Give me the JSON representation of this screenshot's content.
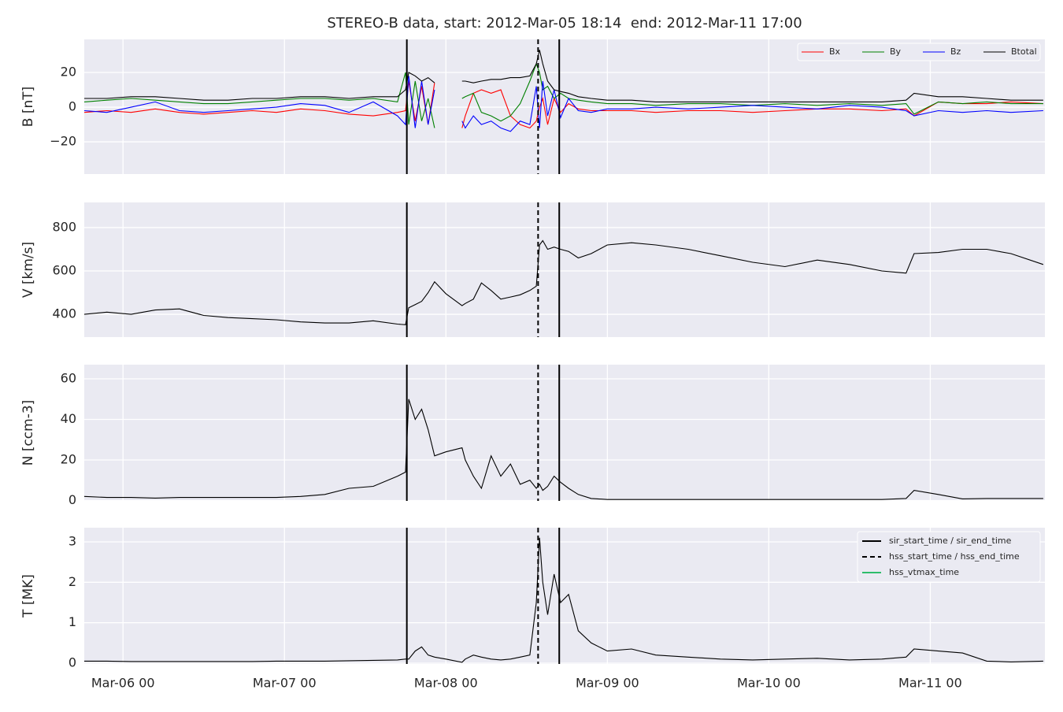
{
  "chart_data": [
    {
      "type": "line",
      "title": "STEREO-B data, start: 2012-Mar-05 18:14  end: 2012-Mar-11 17:00",
      "ylabel": "B [nT]",
      "x": [
        5.76,
        5.9,
        6.05,
        6.2,
        6.35,
        6.5,
        6.65,
        6.8,
        6.95,
        7.1,
        7.25,
        7.4,
        7.55,
        7.7,
        7.75,
        7.77,
        7.81,
        7.85,
        7.89,
        7.93,
        8.0,
        8.1,
        8.12,
        8.17,
        8.22,
        8.28,
        8.34,
        8.4,
        8.46,
        8.52,
        8.56,
        8.58,
        8.6,
        8.63,
        8.67,
        8.71,
        8.76,
        8.82,
        8.9,
        9.0,
        9.15,
        9.3,
        9.5,
        9.7,
        9.9,
        10.1,
        10.3,
        10.5,
        10.7,
        10.85,
        10.9,
        11.05,
        11.2,
        11.35,
        11.5,
        11.7
      ],
      "xlim": [
        5.76,
        11.71
      ],
      "ylim": [
        -38.6,
        39.1
      ],
      "yticks": [
        {
          "value": -20,
          "label": "−20"
        },
        0,
        20
      ],
      "grid": true,
      "legend": "upper right",
      "series": [
        {
          "name": "Bx",
          "color": "#ff0000",
          "values": [
            -3,
            -2,
            -3,
            -1,
            -3,
            -4,
            -3,
            -2,
            -3,
            -1,
            -2,
            -4,
            -5,
            -3,
            -2,
            15,
            -8,
            12,
            -10,
            14,
            null,
            -12,
            -5,
            8,
            10,
            8,
            10,
            -5,
            -10,
            -12,
            -8,
            0,
            5,
            -10,
            5,
            -3,
            2,
            -1,
            -2,
            -2,
            -2,
            -3,
            -2,
            -2,
            -3,
            -2,
            -1,
            -1,
            -2,
            -1,
            -5,
            3,
            2,
            2,
            3,
            2
          ]
        },
        {
          "name": "By",
          "color": "#008000",
          "values": [
            3,
            4,
            5,
            4,
            3,
            2,
            2,
            3,
            4,
            5,
            5,
            4,
            5,
            3,
            20,
            -10,
            15,
            -8,
            5,
            -12,
            null,
            5,
            6,
            8,
            -3,
            -5,
            -8,
            -5,
            2,
            15,
            25,
            20,
            10,
            12,
            5,
            8,
            5,
            4,
            3,
            2,
            2,
            1,
            2,
            2,
            1,
            2,
            1,
            2,
            1,
            2,
            -4,
            3,
            2,
            3,
            2,
            2
          ]
        },
        {
          "name": "Bz",
          "color": "#0000ff",
          "values": [
            -2,
            -3,
            0,
            3,
            -2,
            -3,
            -2,
            -1,
            0,
            2,
            1,
            -3,
            3,
            -5,
            -10,
            18,
            -12,
            15,
            -10,
            10,
            null,
            -8,
            -12,
            -5,
            -10,
            -8,
            -12,
            -14,
            -8,
            -10,
            12,
            -12,
            15,
            -5,
            10,
            -6,
            5,
            -2,
            -3,
            -1,
            -1,
            0,
            -1,
            0,
            1,
            0,
            -1,
            1,
            0,
            -2,
            -5,
            -2,
            -3,
            -2,
            -3,
            -2
          ]
        },
        {
          "name": "Btotal",
          "color": "#000000",
          "values": [
            5,
            5,
            6,
            6,
            5,
            4,
            4,
            5,
            5,
            6,
            6,
            5,
            6,
            6,
            10,
            20,
            18,
            15,
            17,
            14,
            null,
            15,
            15,
            14,
            15,
            16,
            16,
            17,
            17,
            18,
            25,
            33,
            25,
            15,
            10,
            9,
            8,
            6,
            5,
            4,
            4,
            3,
            3,
            3,
            3,
            3,
            3,
            3,
            3,
            4,
            8,
            6,
            6,
            5,
            4,
            4
          ]
        }
      ]
    },
    {
      "type": "line",
      "ylabel": "V [km/s]",
      "x": [
        5.76,
        5.9,
        6.05,
        6.2,
        6.35,
        6.5,
        6.65,
        6.8,
        6.95,
        7.1,
        7.25,
        7.4,
        7.55,
        7.7,
        7.75,
        7.77,
        7.81,
        7.85,
        7.89,
        7.93,
        8.0,
        8.1,
        8.12,
        8.17,
        8.22,
        8.28,
        8.34,
        8.4,
        8.46,
        8.52,
        8.56,
        8.58,
        8.6,
        8.63,
        8.67,
        8.71,
        8.76,
        8.82,
        8.9,
        9.0,
        9.15,
        9.3,
        9.5,
        9.7,
        9.9,
        10.1,
        10.3,
        10.5,
        10.7,
        10.85,
        10.9,
        11.05,
        11.2,
        11.35,
        11.5,
        11.7
      ],
      "xlim": [
        5.76,
        11.71
      ],
      "ylim": [
        295,
        916
      ],
      "yticks": [
        400,
        600,
        800
      ],
      "grid": true,
      "series": [
        {
          "color": "#000000",
          "values": [
            400,
            410,
            400,
            420,
            425,
            395,
            385,
            380,
            375,
            365,
            360,
            360,
            370,
            355,
            352,
            430,
            445,
            460,
            500,
            550,
            495,
            440,
            450,
            470,
            545,
            510,
            470,
            480,
            490,
            510,
            530,
            720,
            740,
            700,
            710,
            700,
            690,
            660,
            680,
            720,
            730,
            720,
            700,
            670,
            640,
            620,
            650,
            630,
            600,
            590,
            680,
            685,
            700,
            700,
            680,
            630
          ]
        }
      ]
    },
    {
      "type": "line",
      "ylabel": "N [ccm-3]",
      "x": [
        5.76,
        5.9,
        6.05,
        6.2,
        6.35,
        6.5,
        6.65,
        6.8,
        6.95,
        7.1,
        7.25,
        7.4,
        7.55,
        7.7,
        7.75,
        7.77,
        7.81,
        7.85,
        7.89,
        7.93,
        8.0,
        8.1,
        8.12,
        8.17,
        8.22,
        8.28,
        8.34,
        8.4,
        8.46,
        8.52,
        8.56,
        8.58,
        8.6,
        8.63,
        8.67,
        8.71,
        8.76,
        8.82,
        8.9,
        9.0,
        9.15,
        9.3,
        9.5,
        9.7,
        9.9,
        10.1,
        10.3,
        10.5,
        10.7,
        10.85,
        10.9,
        11.05,
        11.2,
        11.35,
        11.5,
        11.7
      ],
      "xlim": [
        5.76,
        11.71
      ],
      "ylim": [
        -0.2,
        67
      ],
      "yticks": [
        0,
        20,
        40,
        60
      ],
      "grid": true,
      "series": [
        {
          "color": "#000000",
          "values": [
            2,
            1.5,
            1.5,
            1.2,
            1.5,
            1.5,
            1.5,
            1.5,
            1.5,
            2,
            3,
            6,
            7,
            12,
            14,
            50,
            40,
            45,
            35,
            22,
            24,
            26,
            20,
            12,
            6,
            22,
            12,
            18,
            8,
            10,
            6,
            8,
            5,
            7,
            12,
            9,
            6,
            3,
            1,
            0.5,
            0.5,
            0.5,
            0.5,
            0.5,
            0.5,
            0.5,
            0.5,
            0.5,
            0.5,
            1,
            5,
            3,
            0.8,
            1,
            1,
            1
          ]
        }
      ]
    },
    {
      "type": "line",
      "ylabel": "T [MK]",
      "x": [
        5.76,
        5.9,
        6.05,
        6.2,
        6.35,
        6.5,
        6.65,
        6.8,
        6.95,
        7.1,
        7.25,
        7.4,
        7.55,
        7.7,
        7.75,
        7.77,
        7.81,
        7.85,
        7.89,
        7.93,
        8.0,
        8.1,
        8.12,
        8.17,
        8.22,
        8.28,
        8.34,
        8.4,
        8.46,
        8.52,
        8.56,
        8.58,
        8.6,
        8.63,
        8.67,
        8.71,
        8.76,
        8.82,
        8.9,
        9.0,
        9.15,
        9.3,
        9.5,
        9.7,
        9.9,
        10.1,
        10.3,
        10.5,
        10.7,
        10.85,
        10.9,
        11.05,
        11.2,
        11.35,
        11.5,
        11.7
      ],
      "xlim": [
        5.76,
        11.71
      ],
      "ylim": [
        -0.02,
        3.35
      ],
      "yticks": [
        0,
        1,
        2,
        3
      ],
      "grid": true,
      "legend": "upper right",
      "xticks": [
        {
          "value": 6,
          "label": "Mar-06 00"
        },
        {
          "value": 7,
          "label": "Mar-07 00"
        },
        {
          "value": 8,
          "label": "Mar-08 00"
        },
        {
          "value": 9,
          "label": "Mar-09 00"
        },
        {
          "value": 10,
          "label": "Mar-10 00"
        },
        {
          "value": 11,
          "label": "Mar-11 00"
        }
      ],
      "series": [
        {
          "color": "#000000",
          "values": [
            0.05,
            0.05,
            0.04,
            0.04,
            0.04,
            0.04,
            0.04,
            0.04,
            0.05,
            0.05,
            0.05,
            0.06,
            0.07,
            0.08,
            0.1,
            0.1,
            0.3,
            0.4,
            0.2,
            0.15,
            0.1,
            0.02,
            0.1,
            0.2,
            0.15,
            0.1,
            0.08,
            0.1,
            0.15,
            0.2,
            1.5,
            3.1,
            2.0,
            1.2,
            2.2,
            1.5,
            1.7,
            0.8,
            0.5,
            0.3,
            0.35,
            0.2,
            0.15,
            0.1,
            0.08,
            0.1,
            0.12,
            0.08,
            0.1,
            0.15,
            0.35,
            0.3,
            0.25,
            0.05,
            0.03,
            0.05
          ]
        }
      ],
      "events": [
        {
          "name": "sir_start_time / sir_end_time",
          "color": "#000000",
          "style": "solid",
          "x": [
            7.758,
            8.702
          ]
        },
        {
          "name": "hss_start_time / hss_end_time",
          "color": "#000000",
          "style": "dashed",
          "x": [
            8.571
          ]
        },
        {
          "name": "hss_vtmax_time",
          "color": "#2ebd6b",
          "style": "solid"
        }
      ]
    }
  ]
}
